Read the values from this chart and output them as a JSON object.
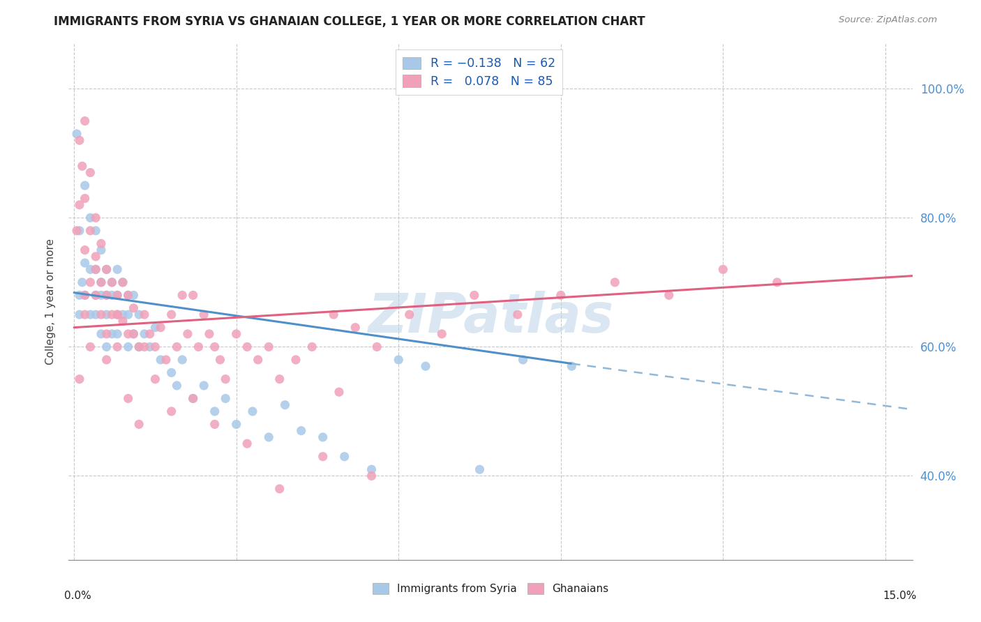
{
  "title": "IMMIGRANTS FROM SYRIA VS GHANAIAN COLLEGE, 1 YEAR OR MORE CORRELATION CHART",
  "source": "Source: ZipAtlas.com",
  "ylabel": "College, 1 year or more",
  "y_tick_vals": [
    0.4,
    0.6,
    0.8,
    1.0
  ],
  "y_tick_labels": [
    "40.0%",
    "60.0%",
    "80.0%",
    "100.0%"
  ],
  "x_tick_vals": [
    0.0,
    0.03,
    0.06,
    0.09,
    0.12,
    0.15
  ],
  "x_tick_labels": [
    "",
    "",
    "",
    "",
    "",
    ""
  ],
  "xlim": [
    -0.001,
    0.155
  ],
  "ylim": [
    0.27,
    1.07
  ],
  "legend_labels": [
    "Immigrants from Syria",
    "Ghanaians"
  ],
  "color_blue": "#a8c8e8",
  "color_pink": "#f0a0b8",
  "line_color_blue": "#5090c8",
  "line_color_pink": "#e06080",
  "line_color_blue_dashed": "#90b8d8",
  "background_color": "#ffffff",
  "grid_color": "#c8c8c8",
  "watermark": "ZIPatlas",
  "R_syria": -0.138,
  "N_syria": 62,
  "R_ghana": 0.078,
  "N_ghana": 85,
  "syria_line_x0": 0.0,
  "syria_line_y0": 0.684,
  "syria_line_x1": 0.092,
  "syria_line_y1": 0.574,
  "syria_line_xd0": 0.092,
  "syria_line_yd0": 0.574,
  "syria_line_xd1": 0.155,
  "syria_line_yd1": 0.503,
  "ghana_line_x0": 0.0,
  "ghana_line_y0": 0.63,
  "ghana_line_x1": 0.155,
  "ghana_line_y1": 0.71,
  "syria_x": [
    0.0005,
    0.001,
    0.001,
    0.0015,
    0.002,
    0.002,
    0.002,
    0.003,
    0.003,
    0.003,
    0.004,
    0.004,
    0.004,
    0.004,
    0.005,
    0.005,
    0.005,
    0.005,
    0.006,
    0.006,
    0.006,
    0.006,
    0.007,
    0.007,
    0.007,
    0.008,
    0.008,
    0.008,
    0.009,
    0.009,
    0.01,
    0.01,
    0.01,
    0.011,
    0.011,
    0.012,
    0.012,
    0.013,
    0.014,
    0.015,
    0.016,
    0.018,
    0.019,
    0.02,
    0.022,
    0.024,
    0.026,
    0.028,
    0.03,
    0.033,
    0.036,
    0.039,
    0.042,
    0.046,
    0.05,
    0.055,
    0.06,
    0.065,
    0.075,
    0.083,
    0.092,
    0.001
  ],
  "syria_y": [
    0.93,
    0.65,
    0.78,
    0.7,
    0.85,
    0.73,
    0.68,
    0.8,
    0.72,
    0.65,
    0.78,
    0.72,
    0.68,
    0.65,
    0.75,
    0.7,
    0.68,
    0.62,
    0.72,
    0.68,
    0.65,
    0.6,
    0.7,
    0.68,
    0.62,
    0.72,
    0.68,
    0.62,
    0.7,
    0.65,
    0.68,
    0.65,
    0.6,
    0.68,
    0.62,
    0.65,
    0.6,
    0.62,
    0.6,
    0.63,
    0.58,
    0.56,
    0.54,
    0.58,
    0.52,
    0.54,
    0.5,
    0.52,
    0.48,
    0.5,
    0.46,
    0.51,
    0.47,
    0.46,
    0.43,
    0.41,
    0.58,
    0.57,
    0.41,
    0.58,
    0.57,
    0.68
  ],
  "ghana_x": [
    0.0005,
    0.001,
    0.001,
    0.0015,
    0.002,
    0.002,
    0.002,
    0.003,
    0.003,
    0.003,
    0.004,
    0.004,
    0.004,
    0.005,
    0.005,
    0.005,
    0.006,
    0.006,
    0.006,
    0.007,
    0.007,
    0.008,
    0.008,
    0.008,
    0.009,
    0.009,
    0.01,
    0.01,
    0.011,
    0.011,
    0.012,
    0.013,
    0.013,
    0.014,
    0.015,
    0.016,
    0.017,
    0.018,
    0.019,
    0.02,
    0.021,
    0.022,
    0.023,
    0.024,
    0.025,
    0.026,
    0.027,
    0.028,
    0.03,
    0.032,
    0.034,
    0.036,
    0.038,
    0.041,
    0.044,
    0.048,
    0.052,
    0.056,
    0.062,
    0.068,
    0.074,
    0.082,
    0.09,
    0.1,
    0.11,
    0.12,
    0.13,
    0.001,
    0.002,
    0.003,
    0.004,
    0.006,
    0.008,
    0.01,
    0.012,
    0.015,
    0.018,
    0.022,
    0.026,
    0.032,
    0.038,
    0.046,
    0.055,
    0.002,
    0.049
  ],
  "ghana_y": [
    0.78,
    0.92,
    0.82,
    0.88,
    0.83,
    0.75,
    0.68,
    0.87,
    0.78,
    0.7,
    0.8,
    0.74,
    0.68,
    0.76,
    0.7,
    0.65,
    0.72,
    0.68,
    0.62,
    0.7,
    0.65,
    0.68,
    0.65,
    0.6,
    0.7,
    0.64,
    0.68,
    0.62,
    0.66,
    0.62,
    0.6,
    0.65,
    0.6,
    0.62,
    0.6,
    0.63,
    0.58,
    0.65,
    0.6,
    0.68,
    0.62,
    0.68,
    0.6,
    0.65,
    0.62,
    0.6,
    0.58,
    0.55,
    0.62,
    0.6,
    0.58,
    0.6,
    0.55,
    0.58,
    0.6,
    0.65,
    0.63,
    0.6,
    0.65,
    0.62,
    0.68,
    0.65,
    0.68,
    0.7,
    0.68,
    0.72,
    0.7,
    0.55,
    0.65,
    0.6,
    0.72,
    0.58,
    0.65,
    0.52,
    0.48,
    0.55,
    0.5,
    0.52,
    0.48,
    0.45,
    0.38,
    0.43,
    0.4,
    0.95,
    0.53
  ]
}
